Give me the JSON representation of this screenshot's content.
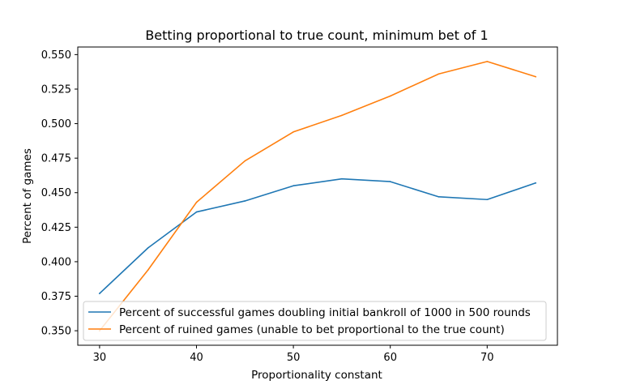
{
  "chart_data": {
    "type": "line",
    "title": "Betting proportional to true count, minimum bet of 1",
    "xlabel": "Proportionality constant",
    "ylabel": "Percent of games",
    "x": [
      30,
      35,
      40,
      45,
      50,
      55,
      60,
      65,
      70,
      75
    ],
    "xlim": [
      27.75,
      77.25
    ],
    "ylim": [
      0.3395,
      0.5555
    ],
    "xticks": [
      30,
      40,
      50,
      60,
      70
    ],
    "xtick_labels": [
      "30",
      "40",
      "50",
      "60",
      "70"
    ],
    "yticks": [
      0.35,
      0.375,
      0.4,
      0.425,
      0.45,
      0.475,
      0.5,
      0.525,
      0.55
    ],
    "ytick_labels": [
      "0.350",
      "0.375",
      "0.400",
      "0.425",
      "0.450",
      "0.475",
      "0.500",
      "0.525",
      "0.550"
    ],
    "grid": false,
    "legend_position": "lower-right",
    "series": [
      {
        "name": "Percent of successful games doubling initial bankroll of 1000 in 500 rounds",
        "color": "#1f77b4",
        "values": [
          0.377,
          0.41,
          0.436,
          0.444,
          0.455,
          0.46,
          0.458,
          0.447,
          0.445,
          0.457
        ]
      },
      {
        "name": "Percent of ruined games (unable to bet proportional to the true count)",
        "color": "#ff7f0e",
        "values": [
          0.35,
          0.394,
          0.443,
          0.473,
          0.494,
          0.506,
          0.52,
          0.536,
          0.545,
          0.534
        ]
      }
    ]
  }
}
